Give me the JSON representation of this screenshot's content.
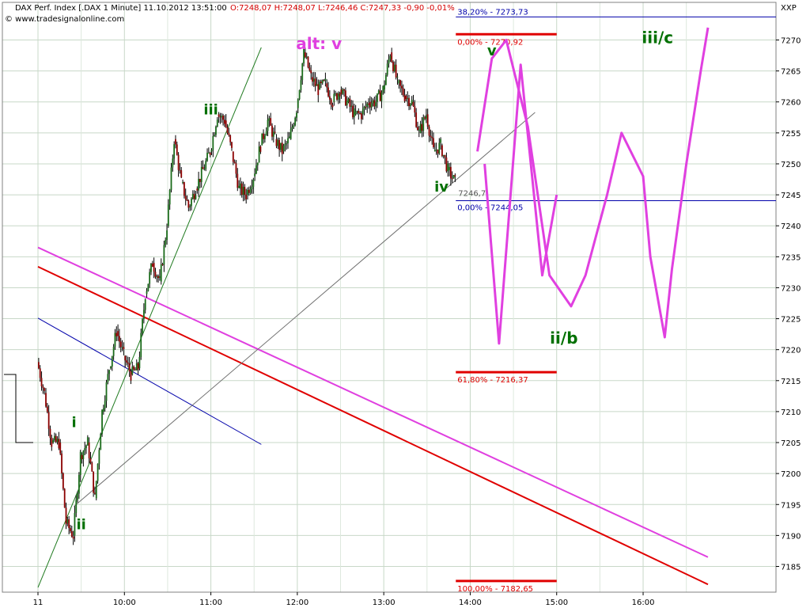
{
  "header": {
    "instrument": "DAX Perf. Index [.DAX  1 Minute] 11.10.2012 13:51:00",
    "ohlc": "O:7248,07 H:7248,07 L:7246,46 C:7247,33 -0,90 -0,01%",
    "source": "© www.tradesignalonline.com",
    "axis_label": "XXP"
  },
  "colors": {
    "grid": "#c8d8c8",
    "candle_up": "#1a6b1a",
    "candle_down": "#8b0000",
    "pink": "#e040e0",
    "red": "#e00000",
    "blue": "#0000aa",
    "green_label": "#007000"
  },
  "chart_data": {
    "type": "line",
    "title": "DAX Perf. Index [.DAX  1 Minute] 11.10.2012 13:51:00",
    "y_ticks": [
      7185,
      7190,
      7195,
      7200,
      7205,
      7210,
      7215,
      7220,
      7225,
      7230,
      7235,
      7240,
      7245,
      7250,
      7255,
      7260,
      7265,
      7270
    ],
    "x_ticks": [
      "11",
      "10:00",
      "11:00",
      "12:00",
      "13:00",
      "14:00",
      "15:00",
      "16:00"
    ],
    "ylim": [
      7181,
      7275
    ],
    "xlim": [
      "09:00",
      "16:50"
    ],
    "grid": true,
    "price_series": {
      "name": "DAX 1 Minute",
      "x": [
        "09:00",
        "09:05",
        "09:10",
        "09:15",
        "09:20",
        "09:25",
        "09:30",
        "09:35",
        "09:40",
        "09:45",
        "09:50",
        "09:55",
        "10:00",
        "10:05",
        "10:10",
        "10:15",
        "10:20",
        "10:25",
        "10:30",
        "10:35",
        "10:40",
        "10:45",
        "10:50",
        "10:55",
        "11:00",
        "11:05",
        "11:10",
        "11:15",
        "11:20",
        "11:25",
        "11:30",
        "11:35",
        "11:40",
        "11:45",
        "11:50",
        "11:55",
        "12:00",
        "12:05",
        "12:10",
        "12:15",
        "12:20",
        "12:25",
        "12:30",
        "12:35",
        "12:40",
        "12:45",
        "12:50",
        "12:55",
        "13:00",
        "13:05",
        "13:10",
        "13:15",
        "13:20",
        "13:25",
        "13:30",
        "13:35",
        "13:40",
        "13:45",
        "13:50"
      ],
      "values": [
        7218,
        7213,
        7205,
        7205,
        7192,
        7190,
        7203,
        7205,
        7196,
        7210,
        7217,
        7223,
        7219,
        7216,
        7217,
        7229,
        7234,
        7231,
        7240,
        7254,
        7247,
        7243,
        7246,
        7249,
        7252,
        7258,
        7257,
        7252,
        7246,
        7245,
        7248,
        7253,
        7257,
        7254,
        7252,
        7254,
        7259,
        7268,
        7264,
        7262,
        7263,
        7260,
        7262,
        7260,
        7258,
        7258,
        7260,
        7260,
        7262,
        7268,
        7263,
        7261,
        7260,
        7255,
        7258,
        7252,
        7253,
        7249,
        7247
      ]
    },
    "forecast_path_1": {
      "x": [
        "14:10",
        "14:20",
        "14:35",
        "14:50",
        "15:00"
      ],
      "values": [
        7250,
        7221,
        7266,
        7232,
        7245
      ]
    },
    "forecast_path_2": {
      "x": [
        "14:05",
        "14:15",
        "14:25",
        "14:40",
        "14:55",
        "15:10",
        "15:20",
        "15:35",
        "15:45",
        "16:00",
        "16:05",
        "16:15",
        "16:20",
        "16:30",
        "16:40",
        "16:45"
      ],
      "values": [
        7252,
        7267,
        7270,
        7256,
        7232,
        7227,
        7232,
        7245,
        7255,
        7248,
        7235,
        7222,
        7233,
        7250,
        7265,
        7272
      ]
    },
    "horizontal_levels": [
      {
        "label": "38,20% - 7273,73",
        "value": 7273.73,
        "color": "blue"
      },
      {
        "label": "0,00% - 7270,92",
        "value": 7270.92,
        "color": "red"
      },
      {
        "label": "0,00% - 7244,05",
        "value": 7244.05,
        "color": "blue"
      },
      {
        "label": "61,80% - 7216,37",
        "value": 7216.37,
        "color": "red"
      },
      {
        "label": "100,00% - 7182,65",
        "value": 7182.65,
        "color": "red"
      }
    ],
    "last_price_label": "7246,7",
    "trendlines": [
      {
        "name": "pink channel",
        "color": "pink",
        "from": {
          "x": "09:00",
          "y": 7236.5
        },
        "to": {
          "x": "16:45",
          "y": 7186.5
        }
      },
      {
        "name": "red channel",
        "color": "red",
        "from": {
          "x": "09:00",
          "y": 7233.4
        },
        "to": {
          "x": "16:45",
          "y": 7182.1
        }
      },
      {
        "name": "blue line",
        "color": "blue",
        "from": {
          "x": "09:00",
          "y": 7225.1
        },
        "to": {
          "x": "11:35",
          "y": 7204.7
        }
      },
      {
        "name": "green trend",
        "color": "green",
        "from": {
          "x": "09:00",
          "y": 7181.6
        },
        "to": {
          "x": "11:35",
          "y": 7268.8
        }
      },
      {
        "name": "gray trend",
        "color": "gray",
        "from": {
          "x": "09:25",
          "y": 7194.7
        },
        "to": {
          "x": "14:45",
          "y": 7258.3
        }
      }
    ],
    "wave_labels": [
      {
        "text": "alt: v",
        "x": "12:15",
        "y": 7268.5,
        "color": "pink"
      },
      {
        "text": "v",
        "x": "14:15",
        "y": 7267.5,
        "color": "green"
      },
      {
        "text": "iii/c",
        "x": "16:10",
        "y": 7269.5,
        "color": "green"
      },
      {
        "text": "iii",
        "x": "11:00",
        "y": 7258,
        "color": "green"
      },
      {
        "text": "iv",
        "x": "13:40",
        "y": 7245.5,
        "color": "green"
      },
      {
        "text": "ii/b",
        "x": "15:05",
        "y": 7221,
        "color": "green"
      },
      {
        "text": "i",
        "x": "09:25",
        "y": 7207.5,
        "color": "green"
      },
      {
        "text": "ii",
        "x": "09:30",
        "y": 7191,
        "color": "green"
      }
    ]
  }
}
